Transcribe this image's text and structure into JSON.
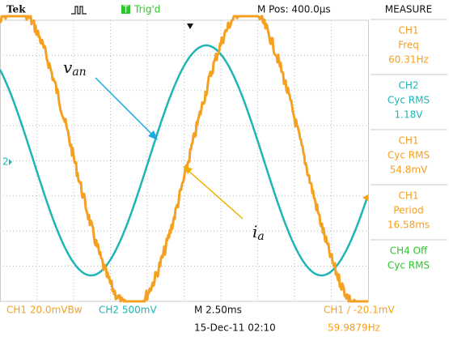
{
  "header": {
    "brand": "Tek",
    "trigger": "Trig'd",
    "position": "M Pos: 400.0µs",
    "panel_title": "MEASURE"
  },
  "measurements": [
    {
      "channel": "CH1",
      "kind": "Freq",
      "value": "60.31Hz",
      "color": "#f5a020"
    },
    {
      "channel": "CH2",
      "kind": "Cyc RMS",
      "value": "1.18V",
      "color": "#1fb5b5"
    },
    {
      "channel": "CH1",
      "kind": "Cyc RMS",
      "value": "54.8mV",
      "color": "#f5a020"
    },
    {
      "channel": "CH1",
      "kind": "Period",
      "value": "16.58ms",
      "color": "#f5a020"
    },
    {
      "channel": "CH4 Off",
      "kind": "Cyc RMS",
      "value": "",
      "color": "#2ec42e"
    }
  ],
  "footer": {
    "ch1_scale": "CH1  20.0mVBw",
    "ch2_scale": "CH2  500mV",
    "timebase": "M 2.50ms",
    "trigger_level": "CH1  ∕  -20.1mV",
    "date": "15-Dec-11 02:10",
    "trigger_freq": "59.9879Hz"
  },
  "annotations": [
    {
      "symbol": "v",
      "subscript": "an"
    },
    {
      "symbol": "i",
      "subscript": "a"
    }
  ],
  "marker": "2"
}
